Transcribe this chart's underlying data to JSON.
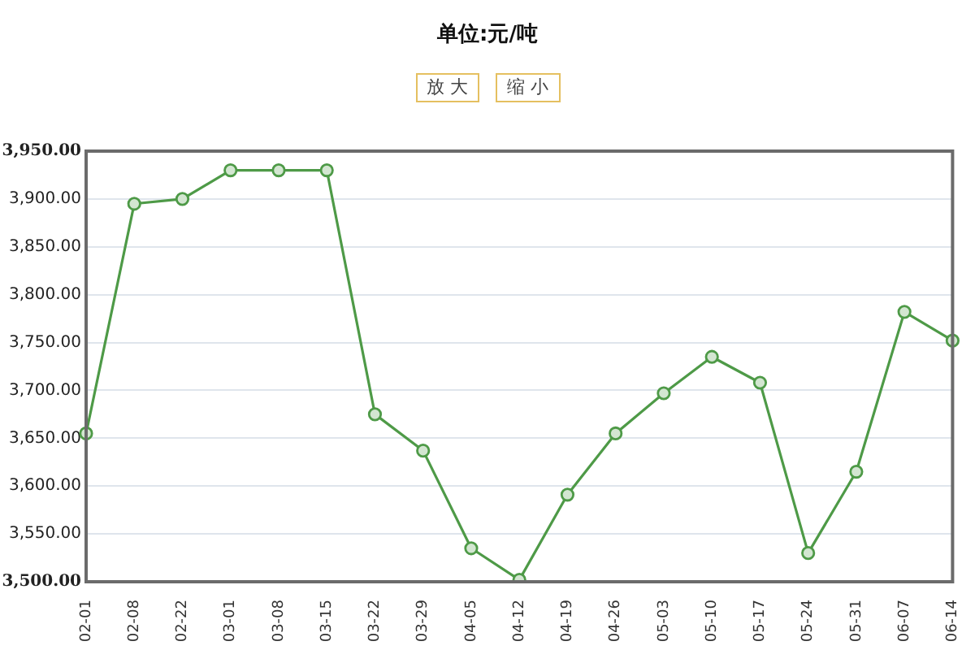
{
  "chart_data": {
    "type": "line",
    "title": "单位:元/吨",
    "annotations": [
      "放 大",
      "缩 小"
    ],
    "categories": [
      "02-01",
      "02-08",
      "02-22",
      "03-01",
      "03-08",
      "03-15",
      "03-22",
      "03-29",
      "04-05",
      "04-12",
      "04-19",
      "04-26",
      "05-03",
      "05-10",
      "05-17",
      "05-24",
      "05-31",
      "06-07",
      "06-14"
    ],
    "series": [
      {
        "color": "#4e9a47",
        "values": [
          3655,
          3895,
          3900,
          3930,
          3930,
          3930,
          3675,
          3637,
          3535,
          3502,
          3591,
          3655,
          3697,
          3735,
          3708,
          3530,
          3615,
          3782,
          3752
        ]
      }
    ],
    "ylim": [
      3500,
      3950
    ],
    "yticks": [
      {
        "value": 3500,
        "label": "3,500.00"
      },
      {
        "value": 3550,
        "label": "3,550.00"
      },
      {
        "value": 3600,
        "label": "3,600.00"
      },
      {
        "value": 3650,
        "label": "3,650.00"
      },
      {
        "value": 3700,
        "label": "3,700.00"
      },
      {
        "value": 3750,
        "label": "3,750.00"
      },
      {
        "value": 3800,
        "label": "3,800.00"
      },
      {
        "value": 3850,
        "label": "3,850.00"
      },
      {
        "value": 3900,
        "label": "3,900.00"
      },
      {
        "value": 3950,
        "label": "3,950.00"
      }
    ],
    "grid": "y",
    "marker": "circle",
    "line_style": "solid"
  }
}
